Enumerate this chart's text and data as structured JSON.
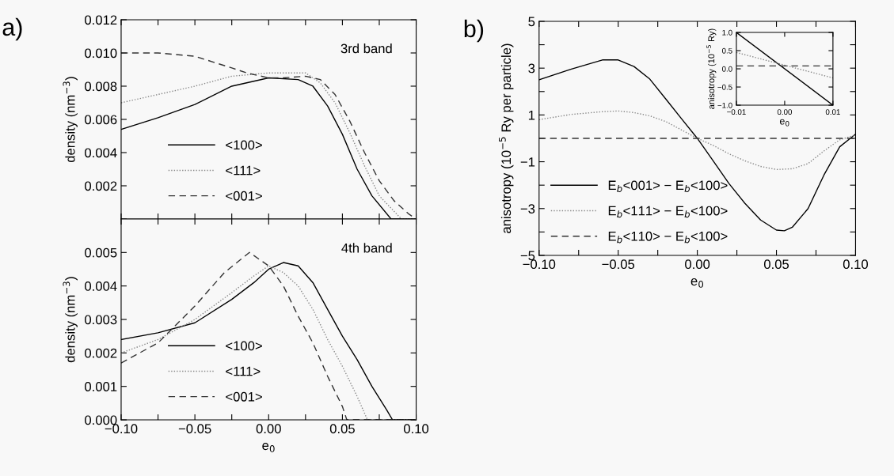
{
  "chart_data": [
    {
      "type": "line",
      "title": "a)",
      "ylabel": "density (nm$^{−3}$)",
      "annotations": [
        "3rd band"
      ],
      "tick_labels": "y",
      "legend": "bottom",
      "grid": false,
      "xlim": [
        -0.1,
        0.1
      ],
      "xticks": [
        {
          "value": -0.1,
          "label": null
        },
        {
          "value": -0.075,
          "label": null
        },
        {
          "value": -0.05,
          "label": null
        },
        {
          "value": -0.025,
          "label": null
        },
        {
          "value": 0,
          "label": null
        },
        {
          "value": 0.025,
          "label": null
        },
        {
          "value": 0.05,
          "label": null
        },
        {
          "value": 0.075,
          "label": null
        },
        {
          "value": 0.1,
          "label": null
        }
      ],
      "ylim": [
        0,
        0.012
      ],
      "yticks": [
        {
          "value": 0,
          "label": null
        },
        {
          "value": 0.002,
          "label": "0.002"
        },
        {
          "value": 0.004,
          "label": "0.004"
        },
        {
          "value": 0.006,
          "label": "0.006"
        },
        {
          "value": 0.008,
          "label": "0.008"
        },
        {
          "value": 0.01,
          "label": "0.010"
        },
        {
          "value": 0.012,
          "label": "0.012"
        }
      ],
      "series": [
        {
          "name": "<100>",
          "color": "#000000",
          "line_style": "solid",
          "x": [
            -0.1,
            -0.075,
            -0.05,
            -0.025,
            0,
            0.02,
            0.03,
            0.04,
            0.05,
            0.06,
            0.07,
            0.083,
            0.1
          ],
          "values": [
            0.0054,
            0.0061,
            0.0069,
            0.008,
            0.0085,
            0.0084,
            0.008,
            0.0068,
            0.0051,
            0.003,
            0.0014,
            0,
            0
          ]
        },
        {
          "name": "<111>",
          "color": "#888888",
          "line_style": "dotted",
          "x": [
            -0.1,
            -0.075,
            -0.05,
            -0.025,
            0,
            0.025,
            0.035,
            0.045,
            0.055,
            0.065,
            0.075,
            0.09,
            0.1
          ],
          "values": [
            0.007,
            0.0075,
            0.008,
            0.0086,
            0.0088,
            0.0088,
            0.0082,
            0.007,
            0.0052,
            0.0032,
            0.0014,
            0,
            0
          ]
        },
        {
          "name": "<001>",
          "color": "#333333",
          "line_style": "dashed",
          "x": [
            -0.1,
            -0.075,
            -0.05,
            -0.025,
            -0.015,
            0,
            0.01,
            0.025,
            0.035,
            0.045,
            0.055,
            0.065,
            0.075,
            0.085,
            0.095,
            0.1
          ],
          "values": [
            0.01,
            0.01,
            0.0098,
            0.0091,
            0.0088,
            0.0085,
            0.0085,
            0.0086,
            0.0084,
            0.0075,
            0.0059,
            0.004,
            0.0023,
            0.0011,
            0.0003,
            0
          ]
        }
      ]
    },
    {
      "type": "line",
      "xlabel": "e$_{0}$",
      "ylabel": "density (nm$^{−3}$)",
      "annotations": [
        "4th band"
      ],
      "legend": "bottom",
      "grid": false,
      "xlim": [
        -0.1,
        0.1
      ],
      "xticks": [
        {
          "value": -0.1,
          "label": "−0.10"
        },
        {
          "value": -0.075,
          "label": null
        },
        {
          "value": -0.05,
          "label": "−0.05"
        },
        {
          "value": -0.025,
          "label": null
        },
        {
          "value": 0,
          "label": "0.00"
        },
        {
          "value": 0.025,
          "label": null
        },
        {
          "value": 0.05,
          "label": "0.05"
        },
        {
          "value": 0.075,
          "label": null
        },
        {
          "value": 0.1,
          "label": "0.10"
        }
      ],
      "ylim": [
        0,
        0.006
      ],
      "yticks": [
        {
          "value": 0,
          "label": "0.000"
        },
        {
          "value": 0.001,
          "label": "0.001"
        },
        {
          "value": 0.002,
          "label": "0.002"
        },
        {
          "value": 0.003,
          "label": "0.003"
        },
        {
          "value": 0.004,
          "label": "0.004"
        },
        {
          "value": 0.005,
          "label": "0.005"
        }
      ],
      "series": [
        {
          "name": "<100>",
          "color": "#000000",
          "line_style": "solid",
          "x": [
            -0.1,
            -0.075,
            -0.05,
            -0.025,
            -0.01,
            0,
            0.01,
            0.02,
            0.03,
            0.04,
            0.05,
            0.06,
            0.07,
            0.08,
            0.084,
            0.1
          ],
          "values": [
            0.0024,
            0.0026,
            0.0029,
            0.0036,
            0.0041,
            0.0045,
            0.0047,
            0.0046,
            0.0041,
            0.0033,
            0.0025,
            0.0018,
            0.001,
            0.0003,
            0,
            0
          ]
        },
        {
          "name": "<111>",
          "color": "#888888",
          "line_style": "dotted",
          "x": [
            -0.1,
            -0.075,
            -0.05,
            -0.025,
            -0.01,
            0,
            0.01,
            0.02,
            0.03,
            0.04,
            0.05,
            0.06,
            0.067,
            0.1
          ],
          "values": [
            0.002,
            0.0024,
            0.003,
            0.0038,
            0.0043,
            0.0046,
            0.0044,
            0.004,
            0.0033,
            0.0024,
            0.0016,
            0.0007,
            0,
            0
          ]
        },
        {
          "name": "<001>",
          "color": "#333333",
          "line_style": "dashed",
          "x": [
            -0.1,
            -0.075,
            -0.05,
            -0.03,
            -0.013,
            0,
            0.01,
            0.02,
            0.03,
            0.04,
            0.05,
            0.053,
            0.1
          ],
          "values": [
            0.0017,
            0.0023,
            0.0034,
            0.0044,
            0.005,
            0.0046,
            0.004,
            0.0031,
            0.0023,
            0.0013,
            0.0004,
            0,
            0
          ]
        }
      ]
    },
    {
      "type": "line",
      "title": "b)",
      "xlabel": "e$_{0}$",
      "ylabel": "anisotropy (10$^{−5}$ Ry per particle)",
      "legend": "bottom left",
      "grid": false,
      "xlim": [
        -0.1,
        0.1
      ],
      "xticks": [
        {
          "value": -0.1,
          "label": "−0.10"
        },
        {
          "value": -0.075,
          "label": null
        },
        {
          "value": -0.05,
          "label": "−0.05"
        },
        {
          "value": -0.025,
          "label": null
        },
        {
          "value": 0,
          "label": "0.00"
        },
        {
          "value": 0.025,
          "label": null
        },
        {
          "value": 0.05,
          "label": "0.05"
        },
        {
          "value": 0.075,
          "label": null
        },
        {
          "value": 0.1,
          "label": "0.10"
        }
      ],
      "ylim": [
        -5,
        5
      ],
      "yticks": [
        {
          "value": -5,
          "label": "−5"
        },
        {
          "value": -4,
          "label": null
        },
        {
          "value": -3,
          "label": "−3"
        },
        {
          "value": -2,
          "label": null
        },
        {
          "value": -1,
          "label": "−1"
        },
        {
          "value": 0,
          "label": null
        },
        {
          "value": 1,
          "label": "1"
        },
        {
          "value": 2,
          "label": null
        },
        {
          "value": 3,
          "label": "3"
        },
        {
          "value": 4,
          "label": null
        },
        {
          "value": 5,
          "label": "5"
        }
      ],
      "series": [
        {
          "name": "E$_{b}$<001> − E$_{b}$<100>",
          "color": "#000000",
          "line_style": "solid",
          "x": [
            -0.1,
            -0.08,
            -0.06,
            -0.05,
            -0.04,
            -0.03,
            -0.02,
            -0.01,
            0,
            0.01,
            0.02,
            0.03,
            0.04,
            0.05,
            0.055,
            0.06,
            0.07,
            0.08,
            0.09,
            0.1
          ],
          "values": [
            2.5,
            2.95,
            3.35,
            3.35,
            3.07,
            2.53,
            1.69,
            0.84,
            0,
            -0.96,
            -1.93,
            -2.77,
            -3.49,
            -3.92,
            -3.95,
            -3.8,
            -3.0,
            -1.57,
            -0.36,
            0.18
          ]
        },
        {
          "name": "E$_{b}$<111> − E$_{b}$<100>",
          "color": "#888888",
          "line_style": "dotted",
          "x": [
            -0.1,
            -0.08,
            -0.06,
            -0.05,
            -0.04,
            -0.03,
            -0.02,
            -0.01,
            0,
            0.01,
            0.02,
            0.03,
            0.04,
            0.05,
            0.06,
            0.07,
            0.08,
            0.09,
            0.1
          ],
          "values": [
            0.8,
            1.02,
            1.14,
            1.17,
            1.1,
            0.96,
            0.72,
            0.36,
            0,
            -0.3,
            -0.66,
            -0.96,
            -1.2,
            -1.33,
            -1.3,
            -1.08,
            -0.54,
            -0.06,
            0.14
          ]
        },
        {
          "name": "E$_{b}$<110> − E$_{b}$<100>",
          "color": "#333333",
          "line_style": "dashed",
          "x": [
            -0.1,
            0.1
          ],
          "values": [
            0,
            0
          ]
        }
      ]
    },
    {
      "type": "line",
      "xlabel": "e$_{0}$",
      "ylabel": "anisotropy (10$^{−5}$ Ry)",
      "grid": false,
      "xlim": [
        -0.01,
        0.01
      ],
      "xticks": [
        {
          "value": -0.01,
          "label": "−0.01"
        },
        {
          "value": 0,
          "label": "0.00"
        },
        {
          "value": 0.01,
          "label": "0.01"
        }
      ],
      "ylim": [
        -1,
        1
      ],
      "yticks": [
        {
          "value": -1,
          "label": "−1.0"
        },
        {
          "value": -0.5,
          "label": "−0.5"
        },
        {
          "value": 0,
          "label": "0.0"
        },
        {
          "value": 0.5,
          "label": "0.5"
        },
        {
          "value": 1,
          "label": "1.0"
        }
      ],
      "series": [
        {
          "color": "#000000",
          "line_style": "solid",
          "x": [
            -0.01,
            0.01
          ],
          "values": [
            1.0,
            -1.0
          ]
        },
        {
          "color": "#888888",
          "line_style": "dotted",
          "x": [
            -0.01,
            0.01
          ],
          "values": [
            0.45,
            -0.25
          ]
        },
        {
          "color": "#333333",
          "line_style": "dashed",
          "x": [
            -0.01,
            0.01
          ],
          "values": [
            0.08,
            0.08
          ]
        }
      ]
    }
  ]
}
